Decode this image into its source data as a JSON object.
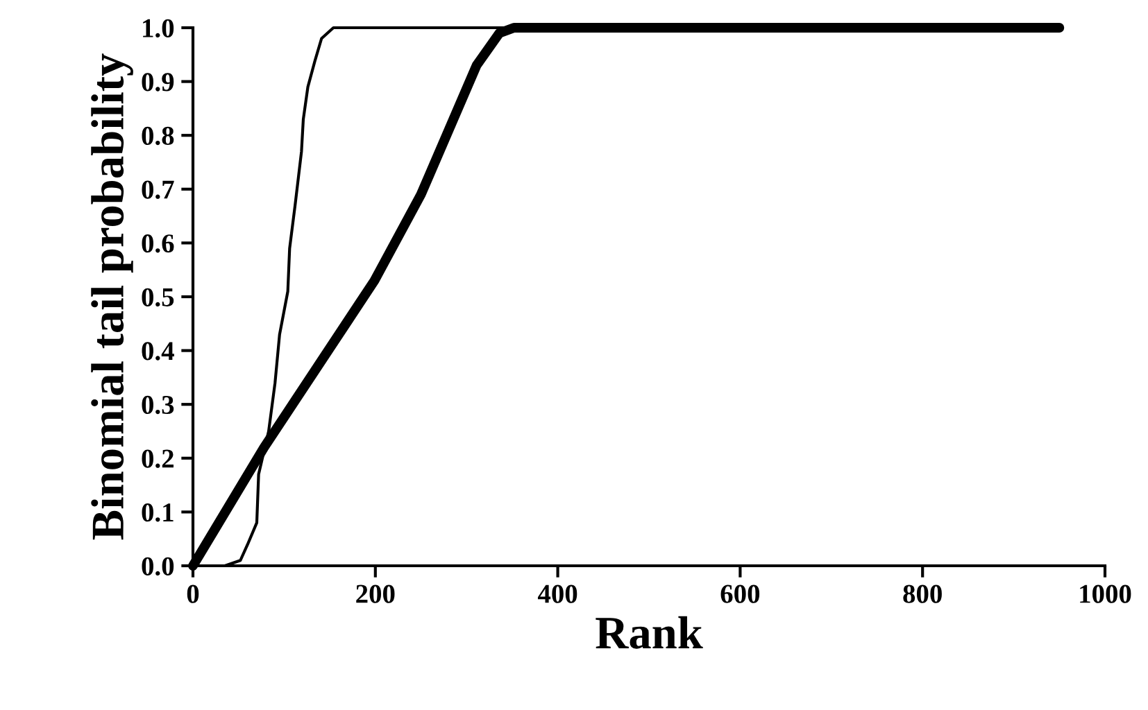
{
  "chart_data": {
    "type": "line",
    "xlabel": "Rank",
    "ylabel": "Binomial tail probability",
    "xlim": [
      0,
      1000
    ],
    "xticks": [
      0,
      200,
      400,
      600,
      800,
      1000
    ],
    "ylim": [
      0,
      1.0
    ],
    "yticks": [
      {
        "value": 0,
        "label": "0.0"
      },
      {
        "value": 0.1,
        "label": "0.1"
      },
      {
        "value": 0.2,
        "label": "0.2"
      },
      {
        "value": 0.3,
        "label": "0.3"
      },
      {
        "value": 0.4,
        "label": "0.4"
      },
      {
        "value": 0.5,
        "label": "0.5"
      },
      {
        "value": 0.6,
        "label": "0.6"
      },
      {
        "value": 0.7,
        "label": "0.7"
      },
      {
        "value": 0.8,
        "label": "0.8"
      },
      {
        "value": 0.9,
        "label": "0.9"
      },
      {
        "value": 1.0,
        "label": "1.0"
      }
    ],
    "series": [
      {
        "color": "#000000",
        "x": [
          0,
          35,
          52,
          60,
          70,
          72,
          83,
          90,
          95,
          104,
          106,
          112,
          119,
          121,
          126,
          134,
          141,
          154,
          950
        ],
        "values": [
          0,
          0,
          0.01,
          0.04,
          0.08,
          0.17,
          0.25,
          0.34,
          0.43,
          0.51,
          0.59,
          0.67,
          0.77,
          0.83,
          0.89,
          0.94,
          0.98,
          1.0,
          1.0
        ]
      },
      {
        "color": "#000000",
        "x": [
          0,
          78,
          199,
          250,
          311,
          336,
          352,
          950
        ],
        "values": [
          0,
          0.22,
          0.53,
          0.69,
          0.93,
          0.99,
          1.0,
          1.0
        ]
      }
    ]
  }
}
